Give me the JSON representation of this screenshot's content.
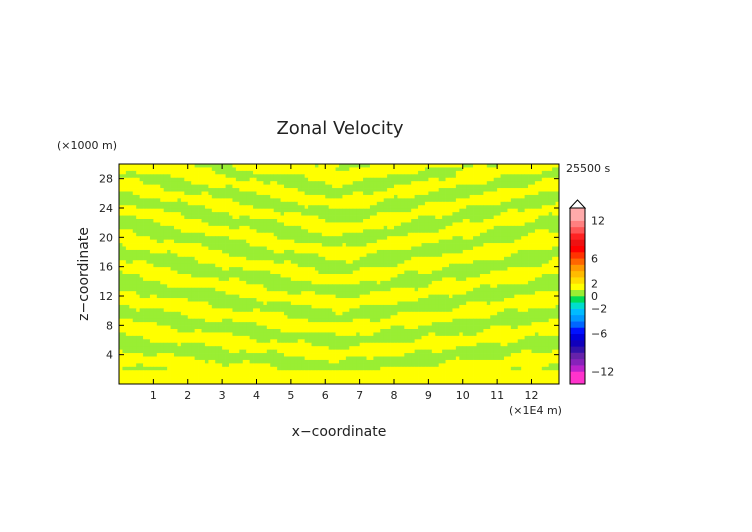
{
  "chart_data": {
    "type": "heatmap",
    "title": "Zonal Velocity",
    "xlabel": "x−coordinate",
    "ylabel": "z−coordinate",
    "x_unit": "(×1E4 m)",
    "y_unit": "(×1000 m)",
    "time_label": "25500 s",
    "xlim": [
      0,
      12.8
    ],
    "ylim": [
      0,
      30
    ],
    "x_ticks": [
      "1",
      "2",
      "3",
      "4",
      "5",
      "6",
      "7",
      "8",
      "9",
      "10",
      "11",
      "12"
    ],
    "y_ticks": [
      "4",
      "8",
      "12",
      "16",
      "20",
      "24",
      "28"
    ],
    "colorbar": {
      "levels": [
        -14,
        -12,
        -11,
        -10,
        -9,
        -8,
        -7,
        -6,
        -5,
        -4,
        -3,
        -2,
        -1,
        0,
        1,
        2,
        3,
        4,
        5,
        6,
        7,
        8,
        9,
        10,
        11,
        12,
        14
      ],
      "colors": [
        "#ff33cc",
        "#bb22cc",
        "#8822bb",
        "#6622aa",
        "#3311aa",
        "#1100bb",
        "#0000dd",
        "#0011ff",
        "#0066ff",
        "#0099ff",
        "#00bbff",
        "#00ddcc",
        "#00dd55",
        "#99ee33",
        "#ffff00",
        "#ffdd00",
        "#ffbb00",
        "#ff9900",
        "#ff6600",
        "#ff3300",
        "#ff0000",
        "#ee1111",
        "#ff2222",
        "#ff5555",
        "#ff8080",
        "#ffaaaa"
      ],
      "tick_labels": [
        "12",
        "6",
        "2",
        "0",
        "−2",
        "−6",
        "−12"
      ],
      "extend_top": true
    },
    "pattern_colors": {
      "positive": "#ffff00",
      "negative": "#99ee33"
    }
  }
}
